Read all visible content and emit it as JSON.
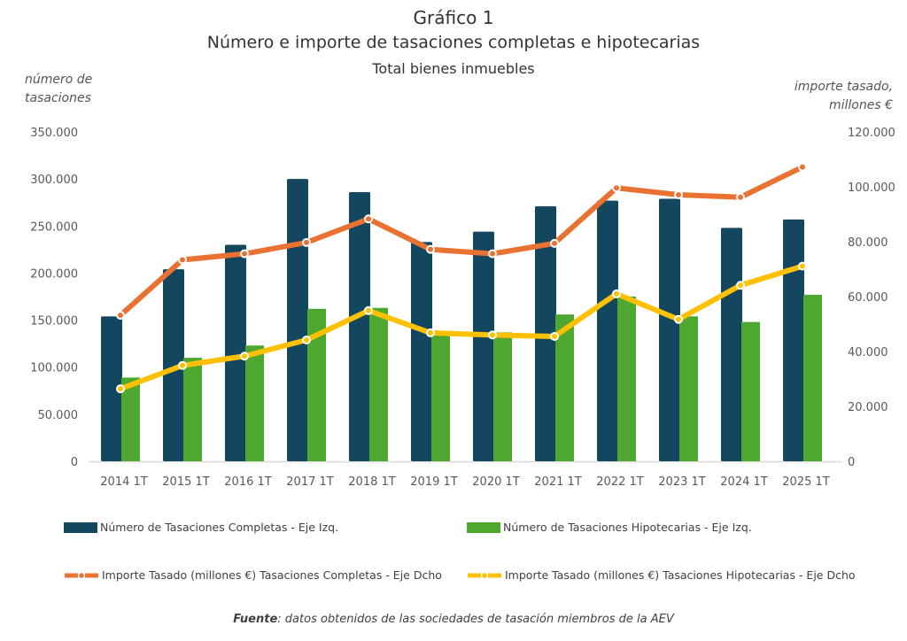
{
  "chart_data": {
    "type": "bar+line",
    "title": "Gráfico 1",
    "subtitle": "Número e importe de tasaciones completas e hipotecarias",
    "subtitle2": "Total bienes inmuebles",
    "ylabel_left": "número de tasaciones",
    "ylabel_right": "importe tasado, millones €",
    "categories": [
      "2014 1T",
      "2015 1T",
      "2016 1T",
      "2017 1T",
      "2018 1T",
      "2019 1T",
      "2020 1T",
      "2021 1T",
      "2022 1T",
      "2023 1T",
      "2024 1T",
      "2025 1T"
    ],
    "ylim_left": [
      0,
      350000
    ],
    "ylim_right": [
      0,
      120000
    ],
    "left_ticks": [
      "0",
      "50.000",
      "100.000",
      "150.000",
      "200.000",
      "250.000",
      "300.000",
      "350.000"
    ],
    "right_ticks": [
      "0",
      "20.000",
      "40.000",
      "60.000",
      "80.000",
      "100.000",
      "120.000"
    ],
    "series": [
      {
        "name": "Número de Tasaciones Completas - Eje Izq.",
        "type": "bar",
        "axis": "left",
        "color": "#12475f",
        "values": [
          154000,
          204000,
          230000,
          300000,
          286000,
          233000,
          244000,
          271000,
          277000,
          279000,
          248000,
          257000
        ]
      },
      {
        "name": "Número de Tasaciones Hipotecarias - Eje Izq.",
        "type": "bar",
        "axis": "left",
        "color": "#4ea72e",
        "values": [
          89000,
          110000,
          123000,
          162000,
          163000,
          134000,
          137000,
          156000,
          175000,
          154000,
          148000,
          177000
        ]
      },
      {
        "name": "Importe Tasado (millones €) Tasaciones Completas  - Eje Dcho",
        "type": "line",
        "axis": "right",
        "color": "#e97132",
        "values": [
          53200,
          73400,
          75600,
          79700,
          88300,
          77200,
          75600,
          79400,
          99600,
          97100,
          96200,
          107200
        ]
      },
      {
        "name": "Importe Tasado (millones €) Tasaciones Hipotecarias - Eje Dcho",
        "type": "line",
        "axis": "right",
        "color": "#ffc000",
        "values": [
          26400,
          34900,
          38300,
          44200,
          54900,
          46800,
          46000,
          45500,
          61000,
          51700,
          64100,
          71100
        ]
      }
    ],
    "grid": false,
    "legend_position": "bottom"
  },
  "labels": {
    "ylabel_left_1": "número de",
    "ylabel_left_2": "tasaciones",
    "ylabel_right_1": "importe tasado,",
    "ylabel_right_2": "millones €"
  },
  "footer": {
    "source_label": "Fuente",
    "source_text": ": datos obtenidos de las sociedades de tasación miembros de la AEV"
  }
}
